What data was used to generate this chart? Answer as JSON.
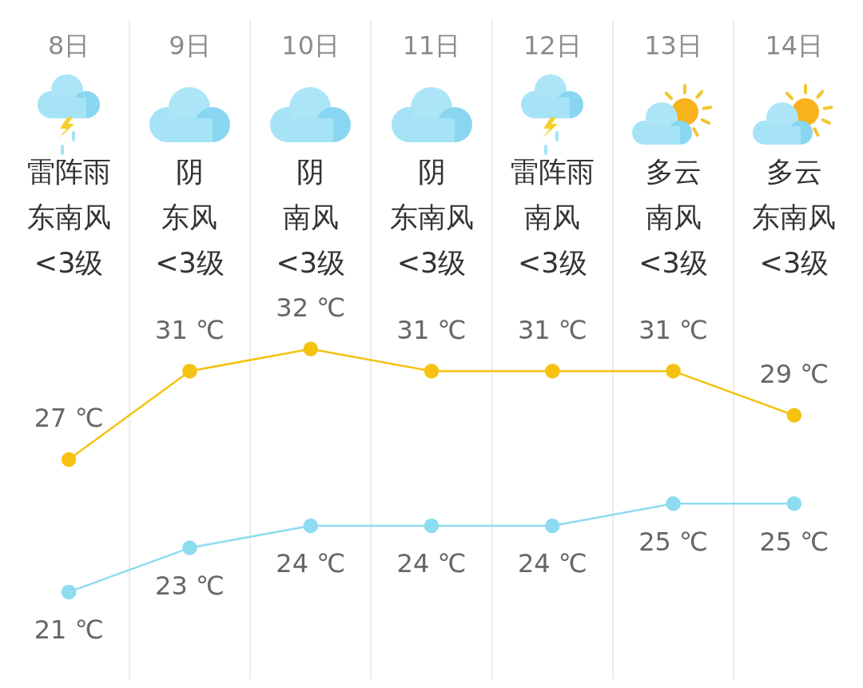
{
  "chart_data": {
    "type": "line",
    "categories": [
      "8日",
      "9日",
      "10日",
      "11日",
      "12日",
      "13日",
      "14日"
    ],
    "series": [
      {
        "color": "#f5c211",
        "values": [
          27,
          31,
          32,
          31,
          31,
          31,
          29
        ],
        "value_labels": [
          "27 ℃",
          "31 ℃",
          "32 ℃",
          "31 ℃",
          "31 ℃",
          "31 ℃",
          "29 ℃"
        ]
      },
      {
        "color": "#8ddcf0",
        "values": [
          21,
          23,
          24,
          24,
          24,
          25,
          25
        ],
        "value_labels": [
          "21 ℃",
          "23 ℃",
          "24 ℃",
          "24 ℃",
          "24 ℃",
          "25 ℃",
          "25 ℃"
        ]
      }
    ],
    "annotations": [
      "雷阵雨",
      "东南风",
      "<3级",
      "阴",
      "东风",
      "<3级",
      "阴",
      "南风",
      "<3级",
      "阴",
      "东南风",
      "<3级",
      "雷阵雨",
      "南风",
      "<3级",
      "多云",
      "南风",
      "<3级",
      "多云",
      "东南风",
      "<3级"
    ],
    "grid": "x",
    "marker": "circle"
  }
}
